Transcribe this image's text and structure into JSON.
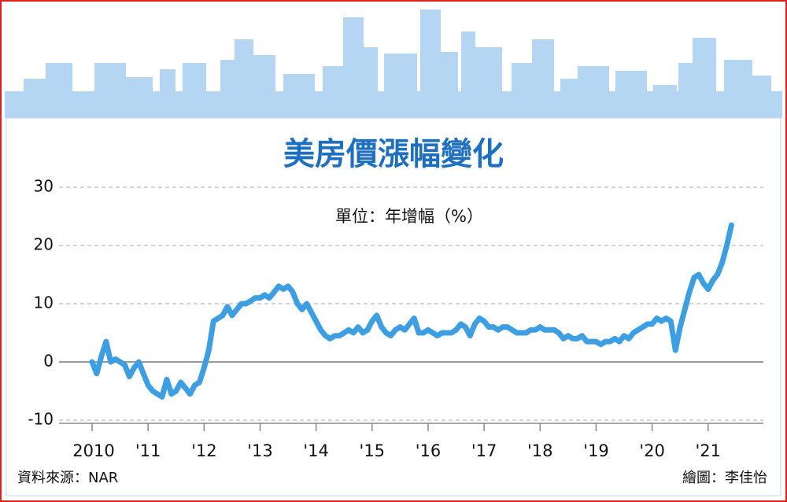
{
  "chart_data": {
    "type": "line",
    "title": "美房價漲幅變化",
    "subtitle": "單位：年增幅（%）",
    "source": "資料來源：NAR",
    "credit": "繪圖：李佳怡",
    "categories": [
      "2010",
      null,
      null,
      null,
      null,
      null,
      null,
      null,
      null,
      null,
      null,
      null,
      "'11",
      null,
      null,
      null,
      null,
      null,
      null,
      null,
      null,
      null,
      null,
      null,
      "'12",
      null,
      null,
      null,
      null,
      null,
      null,
      null,
      null,
      null,
      null,
      null,
      "'13",
      null,
      null,
      null,
      null,
      null,
      null,
      null,
      null,
      null,
      null,
      null,
      "'14",
      null,
      null,
      null,
      null,
      null,
      null,
      null,
      null,
      null,
      null,
      null,
      "'15",
      null,
      null,
      null,
      null,
      null,
      null,
      null,
      null,
      null,
      null,
      null,
      "'16",
      null,
      null,
      null,
      null,
      null,
      null,
      null,
      null,
      null,
      null,
      null,
      "'17",
      null,
      null,
      null,
      null,
      null,
      null,
      null,
      null,
      null,
      null,
      null,
      "'18",
      null,
      null,
      null,
      null,
      null,
      null,
      null,
      null,
      null,
      null,
      null,
      "'19",
      null,
      null,
      null,
      null,
      null,
      null,
      null,
      null,
      null,
      null,
      null,
      "'20",
      null,
      null,
      null,
      null,
      null,
      null,
      null,
      null,
      null,
      null,
      null,
      "'21",
      null,
      null,
      null,
      null,
      null
    ],
    "series": [
      {
        "color": "#3d9fe2",
        "values": [
          0,
          -2,
          1,
          3.5,
          0,
          0.5,
          0,
          -0.5,
          -2.5,
          -1,
          0,
          -2,
          -4,
          -5,
          -5.5,
          -6,
          -3,
          -5.5,
          -5,
          -3.5,
          -4.5,
          -5.5,
          -4,
          -3.5,
          -1,
          2,
          7,
          7.5,
          8,
          9.5,
          8,
          9,
          10,
          10,
          10.5,
          11,
          11,
          11.5,
          11,
          12,
          13,
          12.5,
          13,
          12,
          10,
          9,
          10,
          8.5,
          7,
          5.5,
          4.5,
          4,
          4.5,
          4.5,
          5,
          5.5,
          5,
          6,
          5,
          5.5,
          7,
          8,
          6,
          5,
          4.5,
          5.5,
          6,
          5.5,
          6.5,
          7.5,
          5,
          5,
          5.5,
          5,
          4.5,
          5,
          5,
          5,
          5.5,
          6.5,
          6,
          4.5,
          6.5,
          7.5,
          7,
          6,
          6,
          5.5,
          6,
          6,
          5.5,
          5,
          5,
          5,
          5.5,
          5.5,
          6,
          5.5,
          5.5,
          5.5,
          5,
          4,
          4.5,
          4,
          4,
          4.5,
          3.5,
          3.5,
          3.5,
          3,
          3.5,
          3.5,
          4,
          3.5,
          4.5,
          4,
          5,
          5.5,
          6,
          6.5,
          6.5,
          7.5,
          7,
          7.5,
          7,
          2,
          6,
          9,
          12,
          14.5,
          15,
          13.5,
          12.5,
          14,
          15,
          17,
          20,
          23.5
        ]
      }
    ],
    "ylim": [
      -10,
      30
    ],
    "yticks": [
      -10,
      0,
      10,
      20,
      30
    ],
    "grid": true
  }
}
